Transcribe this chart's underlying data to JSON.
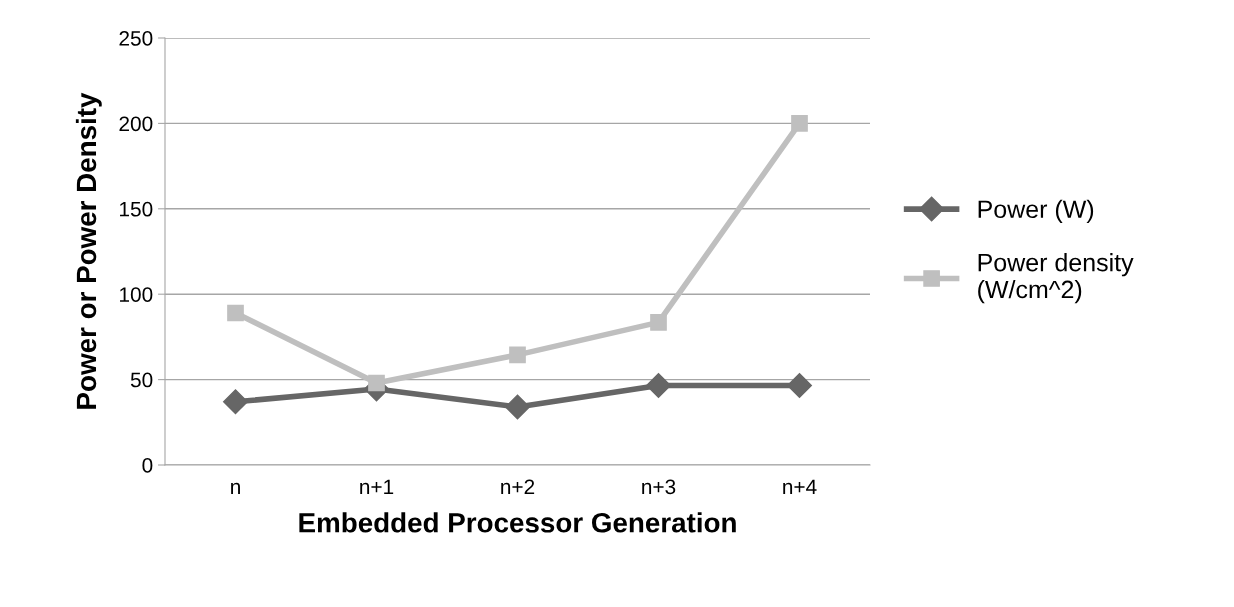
{
  "chart_data": {
    "type": "line",
    "xlabel": "Embedded Processor Generation",
    "ylabel": "Power or Power Density",
    "categories": [
      "n",
      "n+1",
      "n+2",
      "n+3",
      "n+4"
    ],
    "series": [
      {
        "name": "Power (W)",
        "color": "#666666",
        "marker": "diamond",
        "values": [
          37,
          44.5,
          34,
          46.5,
          46.5
        ]
      },
      {
        "name": "Power density\n(W/cm^2)",
        "color": "#bfbfbf",
        "marker": "square",
        "values": [
          89,
          48,
          64.5,
          83.5,
          200
        ]
      }
    ],
    "ylim": [
      0,
      250
    ],
    "yticks": [
      0,
      50,
      100,
      150,
      200,
      250
    ],
    "grid": "y",
    "legend": "right"
  }
}
